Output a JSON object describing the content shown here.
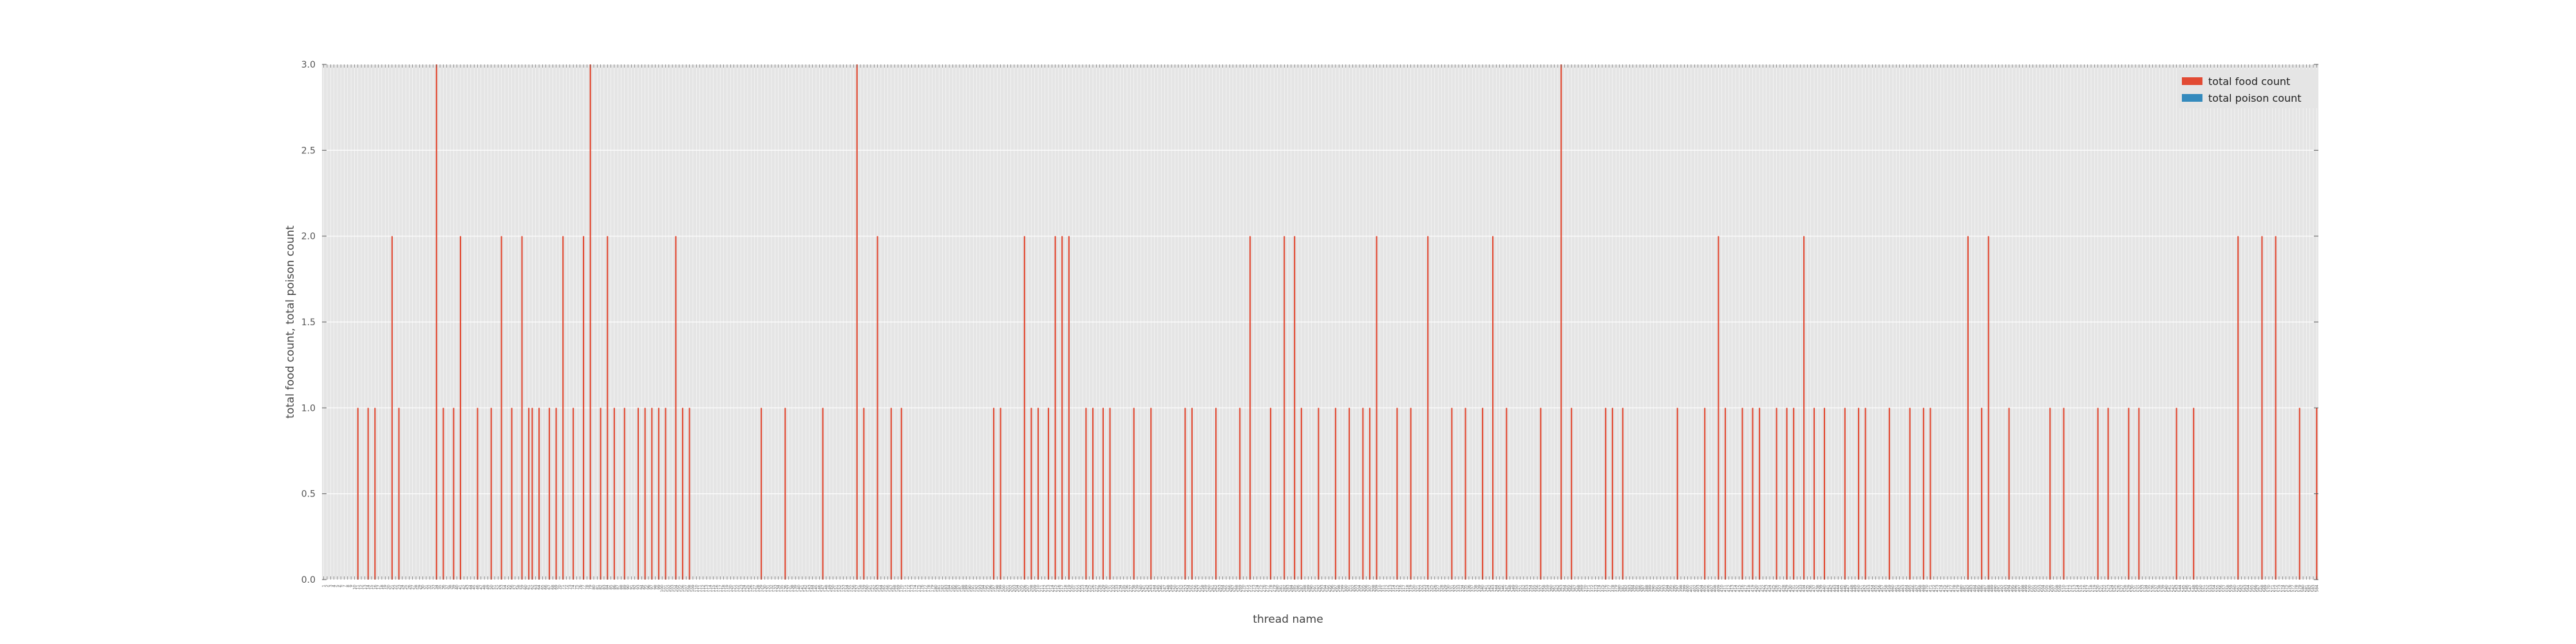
{
  "chart_data": {
    "type": "bar",
    "xlabel": "thread name",
    "ylabel": "total food count, total poison count",
    "ylim": [
      0,
      3
    ],
    "yticks": [
      "0.0",
      "0.5",
      "1.0",
      "1.5",
      "2.0",
      "2.5",
      "3.0"
    ],
    "grid": true,
    "legend_position": "top-right",
    "categories_start": 1,
    "series": [
      {
        "name": "total food count",
        "color": "#e24a33",
        "values": [
          0,
          0,
          0,
          0,
          0,
          0,
          0,
          0,
          0,
          0,
          1,
          0,
          0,
          1,
          0,
          1,
          0,
          0,
          0,
          0,
          2,
          0,
          1,
          0,
          0,
          0,
          0,
          0,
          0,
          0,
          0,
          0,
          0,
          3,
          0,
          1,
          0,
          0,
          1,
          0,
          2,
          0,
          0,
          0,
          0,
          1,
          0,
          0,
          0,
          1,
          0,
          0,
          2,
          0,
          0,
          1,
          0,
          0,
          2,
          0,
          1,
          1,
          0,
          1,
          0,
          0,
          1,
          0,
          1,
          0,
          2,
          0,
          0,
          1,
          0,
          0,
          2,
          0,
          3,
          0,
          0,
          1,
          0,
          2,
          0,
          1,
          0,
          0,
          1,
          0,
          0,
          0,
          1,
          0,
          1,
          0,
          1,
          0,
          1,
          0,
          1,
          0,
          0,
          2,
          0,
          1,
          0,
          1,
          0,
          0,
          0,
          0,
          0,
          0,
          0,
          0,
          0,
          0,
          0,
          0,
          0,
          0,
          0,
          0,
          0,
          0,
          0,
          0,
          1,
          0,
          0,
          0,
          0,
          0,
          0,
          1,
          0,
          0,
          0,
          0,
          0,
          0,
          0,
          0,
          0,
          0,
          1,
          0,
          0,
          0,
          0,
          0,
          0,
          0,
          0,
          0,
          3,
          0,
          1,
          0,
          0,
          0,
          2,
          0,
          0,
          0,
          1,
          0,
          0,
          1,
          0,
          0,
          0,
          0,
          0,
          0,
          0,
          0,
          0,
          0,
          0,
          0,
          0,
          0,
          0,
          0,
          0,
          0,
          0,
          0,
          0,
          0,
          0,
          0,
          0,
          0,
          1,
          0,
          1,
          0,
          0,
          0,
          0,
          0,
          0,
          2,
          0,
          1,
          0,
          1,
          0,
          0,
          1,
          0,
          2,
          0,
          2,
          0,
          2,
          0,
          0,
          0,
          0,
          1,
          0,
          1,
          0,
          0,
          1,
          0,
          1,
          0,
          0,
          0,
          0,
          0,
          0,
          1,
          0,
          0,
          0,
          0,
          1,
          0,
          0,
          0,
          0,
          0,
          0,
          0,
          0,
          0,
          1,
          0,
          1,
          0,
          0,
          0,
          0,
          0,
          0,
          1,
          0,
          0,
          0,
          0,
          0,
          0,
          1,
          0,
          0,
          2,
          0,
          0,
          0,
          0,
          0,
          1,
          0,
          0,
          0,
          2,
          0,
          0,
          2,
          0,
          1,
          0,
          0,
          0,
          0,
          1,
          0,
          0,
          0,
          0,
          1,
          0,
          0,
          0,
          1,
          0,
          0,
          0,
          1,
          0,
          1,
          0,
          2,
          0,
          0,
          0,
          0,
          0,
          1,
          0,
          0,
          0,
          1,
          0,
          0,
          0,
          0,
          2,
          0,
          0,
          0,
          0,
          0,
          0,
          1,
          0,
          0,
          0,
          1,
          0,
          0,
          0,
          0,
          1,
          0,
          0,
          2,
          0,
          0,
          0,
          1,
          0,
          0,
          0,
          0,
          0,
          0,
          0,
          0,
          0,
          1,
          0,
          0,
          0,
          0,
          0,
          3,
          0,
          0,
          1,
          0,
          0,
          0,
          0,
          0,
          0,
          0,
          0,
          0,
          1,
          0,
          1,
          0,
          0,
          1,
          0,
          0,
          0,
          0,
          0,
          0,
          0,
          0,
          0,
          0,
          0,
          0,
          0,
          0,
          0,
          1,
          0,
          0,
          0,
          0,
          0,
          0,
          0,
          1,
          0,
          0,
          0,
          2,
          0,
          1,
          0,
          0,
          0,
          0,
          1,
          0,
          0,
          1,
          0,
          1,
          0,
          0,
          0,
          0,
          1,
          0,
          0,
          1,
          0,
          1,
          0,
          0,
          2,
          0,
          0,
          1,
          0,
          0,
          1,
          0,
          0,
          0,
          0,
          0,
          1,
          0,
          0,
          0,
          1,
          0,
          1,
          0,
          0,
          0,
          0,
          0,
          0,
          1,
          0,
          0,
          0,
          0,
          0,
          1,
          0,
          0,
          0,
          1,
          0,
          1,
          0,
          0,
          0,
          0,
          0,
          0,
          0,
          0,
          0,
          0,
          2,
          0,
          0,
          0,
          1,
          0,
          2,
          0,
          0,
          0,
          0,
          0,
          1,
          0,
          0,
          0,
          0,
          0,
          0,
          0,
          0,
          0,
          0,
          0,
          1,
          0,
          0,
          0,
          1,
          0,
          0,
          0,
          0,
          0,
          0,
          0,
          0,
          0,
          1,
          0,
          0,
          1,
          0,
          0,
          0,
          0,
          0,
          1,
          0,
          0,
          1,
          0,
          0,
          0,
          0,
          0,
          0,
          0,
          0,
          0,
          0,
          1,
          0,
          0,
          0,
          0,
          1,
          0,
          0,
          0,
          0,
          0,
          0,
          0,
          0,
          0,
          0,
          0,
          0,
          2,
          0,
          0,
          0,
          0,
          0,
          0,
          2,
          0,
          0,
          0,
          2,
          0,
          0,
          0,
          0,
          0,
          0,
          1,
          0,
          0,
          0,
          0,
          1
        ],
        "bar_width_fraction": 0.4
      },
      {
        "name": "total poison count",
        "color": "#348abd",
        "values": []
      }
    ]
  }
}
